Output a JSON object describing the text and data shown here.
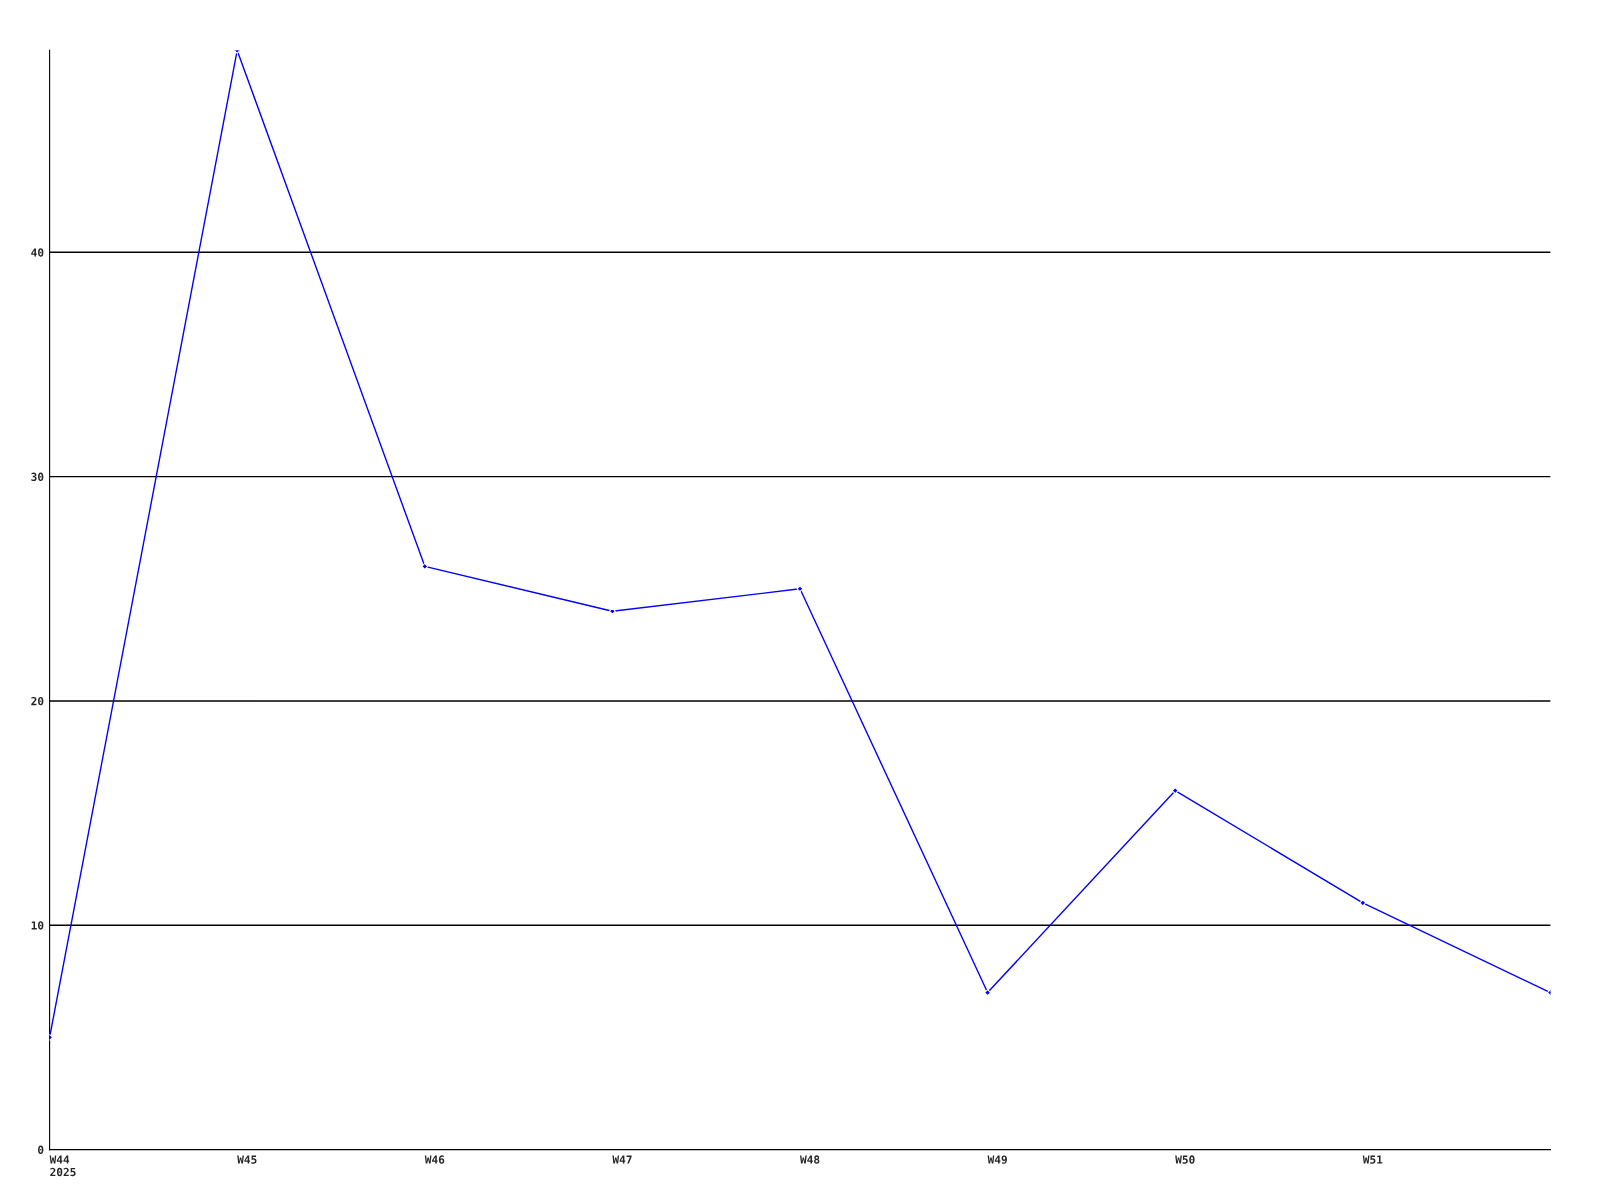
{
  "chart_data": {
    "type": "line",
    "categories": [
      "W44\n2025",
      "W45",
      "W46",
      "W47",
      "W48",
      "W49",
      "W50",
      "W51",
      null
    ],
    "series": [
      {
        "color": "#0000ff",
        "values": [
          5,
          49,
          26,
          24,
          25,
          7,
          16,
          11,
          7
        ]
      }
    ],
    "ylim": [
      0,
      49
    ],
    "yticks": [
      0,
      10,
      20,
      30,
      40
    ],
    "grid": "y",
    "marker": "diamond",
    "line_style": "solid",
    "legend": false
  }
}
